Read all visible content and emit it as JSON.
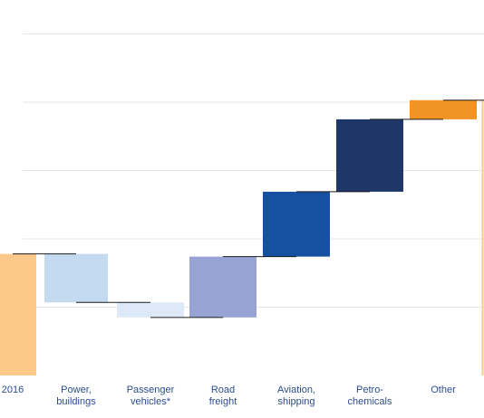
{
  "chart_data": {
    "type": "bar",
    "subtype": "waterfall",
    "categories": [
      "2016",
      "Power, buildings",
      "Passenger vehicles*",
      "Road freight",
      "Aviation, shipping",
      "Petro-chemicals",
      "Other"
    ],
    "tick_lines": [
      [
        "2016"
      ],
      [
        "Power,",
        "buildings"
      ],
      [
        "Passenger",
        "vehicles*"
      ],
      [
        "Road",
        "freight"
      ],
      [
        "Aviation,",
        "shipping"
      ],
      [
        "Petro-",
        "chemicals"
      ],
      [
        "Other"
      ]
    ],
    "steps": [
      {
        "category": "2016",
        "kind": "total",
        "start": 0,
        "end": 1.78
      },
      {
        "category": "Power, buildings",
        "kind": "decrease",
        "start": 1.78,
        "end": 1.07
      },
      {
        "category": "Passenger vehicles*",
        "kind": "decrease",
        "start": 1.07,
        "end": 0.85
      },
      {
        "category": "Road freight",
        "kind": "increase",
        "start": 0.85,
        "end": 1.74
      },
      {
        "category": "Aviation, shipping",
        "kind": "increase",
        "start": 1.74,
        "end": 2.69
      },
      {
        "category": "Petro-chemicals",
        "kind": "increase",
        "start": 2.69,
        "end": 3.75
      },
      {
        "category": "Other",
        "kind": "increase",
        "start": 3.75,
        "end": 4.03
      }
    ],
    "colors": [
      "#fdc98a",
      "#c3daf1",
      "#dde9f6",
      "#97a3d2",
      "#1650a3",
      "#1e3668",
      "#f29325"
    ],
    "ylim": [
      0,
      5
    ],
    "gridlines": [
      1,
      2,
      3,
      4,
      5
    ],
    "grid": true,
    "legend": "none",
    "title": "",
    "xlabel": "",
    "ylabel": "",
    "end_marker_color": "#fdc98a"
  }
}
